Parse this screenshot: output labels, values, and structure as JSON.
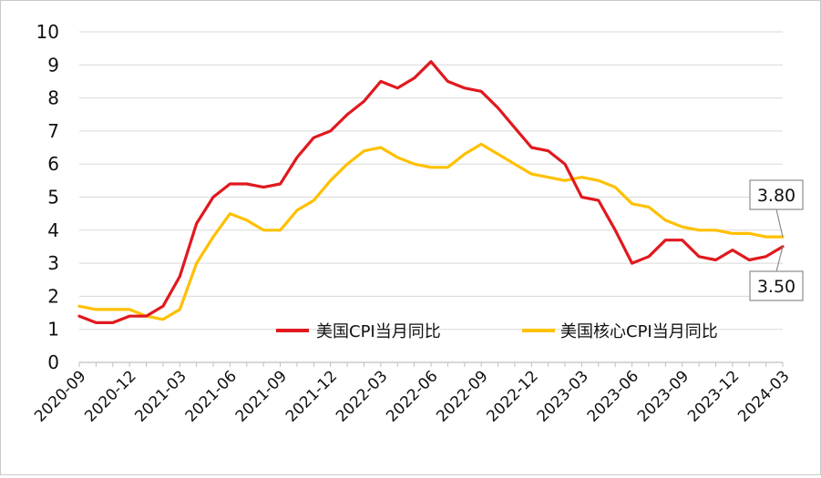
{
  "chart_data": {
    "type": "line",
    "title": "",
    "xlabel": "",
    "ylabel": "",
    "ylim": [
      0,
      10
    ],
    "yticks": [
      0,
      1,
      2,
      3,
      4,
      5,
      6,
      7,
      8,
      9,
      10
    ],
    "grid": true,
    "legend_position": "bottom-center inside plot",
    "x": [
      "2020-09",
      "2020-10",
      "2020-11",
      "2020-12",
      "2021-01",
      "2021-02",
      "2021-03",
      "2021-04",
      "2021-05",
      "2021-06",
      "2021-07",
      "2021-08",
      "2021-09",
      "2021-10",
      "2021-11",
      "2021-12",
      "2022-01",
      "2022-02",
      "2022-03",
      "2022-04",
      "2022-05",
      "2022-06",
      "2022-07",
      "2022-08",
      "2022-09",
      "2022-10",
      "2022-11",
      "2022-12",
      "2023-01",
      "2023-02",
      "2023-03",
      "2023-04",
      "2023-05",
      "2023-06",
      "2023-07",
      "2023-08",
      "2023-09",
      "2023-10",
      "2023-11",
      "2023-12",
      "2024-01",
      "2024-02",
      "2024-03"
    ],
    "x_tick_labels": [
      "2020-09",
      "2020-12",
      "2021-03",
      "2021-06",
      "2021-09",
      "2021-12",
      "2022-03",
      "2022-06",
      "2022-09",
      "2022-12",
      "2023-03",
      "2023-06",
      "2023-09",
      "2023-12",
      "2024-03"
    ],
    "series": [
      {
        "name": "美国CPI当月同比",
        "color": "#e0191e",
        "values": [
          1.4,
          1.2,
          1.2,
          1.4,
          1.4,
          1.7,
          2.6,
          4.2,
          5.0,
          5.4,
          5.4,
          5.3,
          5.4,
          6.2,
          6.8,
          7.0,
          7.5,
          7.9,
          8.5,
          8.3,
          8.6,
          9.1,
          8.5,
          8.3,
          8.2,
          7.7,
          7.1,
          6.5,
          6.4,
          6.0,
          5.0,
          4.9,
          4.0,
          3.0,
          3.2,
          3.7,
          3.7,
          3.2,
          3.1,
          3.4,
          3.1,
          3.2,
          3.5
        ]
      },
      {
        "name": "美国核心CPI当月同比",
        "color": "#ffc000",
        "values": [
          1.7,
          1.6,
          1.6,
          1.6,
          1.4,
          1.3,
          1.6,
          3.0,
          3.8,
          4.5,
          4.3,
          4.0,
          4.0,
          4.6,
          4.9,
          5.5,
          6.0,
          6.4,
          6.5,
          6.2,
          6.0,
          5.9,
          5.9,
          6.3,
          6.6,
          6.3,
          6.0,
          5.7,
          5.6,
          5.5,
          5.6,
          5.5,
          5.3,
          4.8,
          4.7,
          4.3,
          4.1,
          4.0,
          4.0,
          3.9,
          3.9,
          3.8,
          3.8
        ]
      }
    ],
    "annotations": [
      {
        "series": "美国核心CPI当月同比",
        "label": "3.80"
      },
      {
        "series": "美国CPI当月同比",
        "label": "3.50"
      }
    ]
  }
}
